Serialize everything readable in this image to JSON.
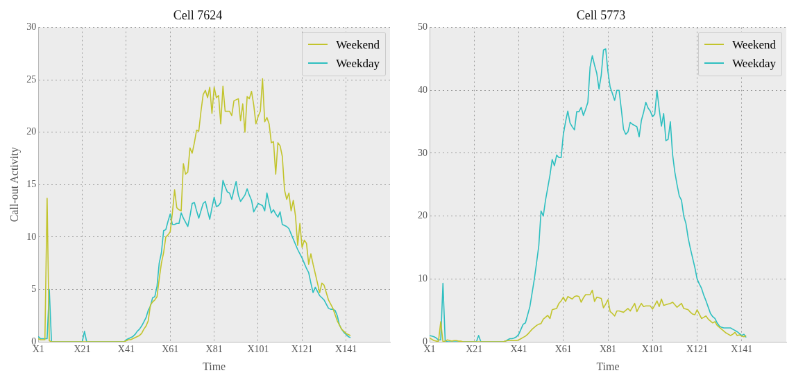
{
  "chart_data": [
    {
      "type": "line",
      "title": "Cell 7624",
      "xlabel": "Time",
      "ylabel": "Call-out Activity",
      "categories": [
        "X1",
        null,
        null,
        null,
        null,
        null,
        null,
        null,
        null,
        null,
        null,
        null,
        null,
        null,
        null,
        null,
        null,
        null,
        null,
        null,
        "X21",
        null,
        null,
        null,
        null,
        null,
        null,
        null,
        null,
        null,
        null,
        null,
        null,
        null,
        null,
        null,
        null,
        null,
        null,
        null,
        "X41",
        null,
        null,
        null,
        null,
        null,
        null,
        null,
        null,
        null,
        null,
        null,
        null,
        null,
        null,
        null,
        null,
        null,
        null,
        null,
        "X61",
        null,
        null,
        null,
        null,
        null,
        null,
        null,
        null,
        null,
        null,
        null,
        null,
        null,
        null,
        null,
        null,
        null,
        null,
        null,
        "X81",
        null,
        null,
        null,
        null,
        null,
        null,
        null,
        null,
        null,
        null,
        null,
        null,
        null,
        null,
        null,
        null,
        null,
        null,
        null,
        "X101",
        null,
        null,
        null,
        null,
        null,
        null,
        null,
        null,
        null,
        null,
        null,
        null,
        null,
        null,
        null,
        null,
        null,
        null,
        null,
        "X121",
        null,
        null,
        null,
        null,
        null,
        null,
        null,
        null,
        null,
        null,
        null,
        null,
        null,
        null,
        null,
        null,
        null,
        null,
        null,
        "X141",
        null,
        null,
        null,
        null,
        null,
        null,
        null,
        null,
        null,
        null,
        null,
        null,
        null,
        null,
        null,
        null,
        null,
        null,
        null,
        null
      ],
      "ylim": [
        0,
        30
      ],
      "yticks": [
        0,
        5,
        10,
        15,
        20,
        25,
        30
      ],
      "grid": true,
      "legend": "top right",
      "series": [
        {
          "name": "Weekend",
          "color": "#c2c42c",
          "values": [
            0.3,
            0.2,
            0.2,
            0.2,
            13.7,
            0.1,
            0,
            0,
            0,
            0,
            0,
            0,
            0,
            0,
            0,
            0,
            0,
            0,
            0,
            0,
            0,
            0,
            0,
            0,
            0,
            0,
            0,
            0,
            0,
            0,
            0,
            0,
            0,
            0,
            0,
            0,
            0,
            0,
            0,
            0,
            0.1,
            0.2,
            0.2,
            0.3,
            0.4,
            0.5,
            0.6,
            0.8,
            1.2,
            1.5,
            2,
            3.5,
            3.8,
            4,
            4.3,
            6,
            7.5,
            8.5,
            10,
            10.2,
            10.5,
            12.3,
            14.5,
            12.8,
            12.6,
            12.5,
            17,
            16,
            16.2,
            18.5,
            18,
            19,
            20.2,
            20.1,
            22,
            23.6,
            24,
            23.3,
            24.3,
            21.8,
            24.3,
            23.3,
            23.5,
            20.8,
            24.4,
            22,
            22,
            22,
            21.6,
            23,
            23.1,
            23.2,
            21.1,
            22.7,
            20,
            23.4,
            23.2,
            23.9,
            22.6,
            20.8,
            21.5,
            22,
            25.1,
            21,
            21.4,
            20.8,
            19,
            19.1,
            16,
            19,
            18.7,
            17.7,
            14.5,
            13.6,
            14.2,
            12.5,
            13.5,
            12,
            9.2,
            11.3,
            9,
            9.7,
            9.4,
            7.4,
            8.4,
            7.4,
            6.5,
            5.6,
            4.7,
            5.6,
            5.4,
            4.7,
            4,
            3.6,
            3.2,
            2.6,
            2,
            1.6,
            1.2,
            1,
            0.8,
            0.7,
            0.6,
            null,
            null,
            null,
            null,
            null,
            null,
            null,
            null,
            null,
            null,
            null,
            null,
            null,
            null,
            null,
            null,
            null,
            null
          ]
        },
        {
          "name": "Weekday",
          "color": "#2dbfc0",
          "values": [
            0.5,
            0.3,
            0.3,
            0.3,
            0.3,
            5,
            0,
            0,
            0,
            0,
            0,
            0,
            0,
            0,
            0,
            0,
            0,
            0,
            0,
            0,
            0,
            1,
            0,
            0,
            0,
            0,
            0,
            0,
            0,
            0,
            0,
            0,
            0,
            0,
            0,
            0,
            0,
            0,
            0,
            0,
            0.2,
            0.3,
            0.4,
            0.5,
            0.7,
            1,
            1.2,
            1.5,
            1.9,
            2.3,
            3,
            3.4,
            4.2,
            4.3,
            5.3,
            7.5,
            8.5,
            10.6,
            10.7,
            11.5,
            12.2,
            11.2,
            11.2,
            11.3,
            11.3,
            12.3,
            11.8,
            11.4,
            11,
            12,
            13.2,
            13.3,
            12.5,
            11.8,
            12.5,
            13.2,
            13.4,
            12.5,
            11.7,
            12.8,
            13.8,
            12.9,
            13,
            13.3,
            15.4,
            14.8,
            14.3,
            14.2,
            13.6,
            14.5,
            15.3,
            14,
            13.4,
            13.7,
            14,
            14.6,
            14,
            13.5,
            12.4,
            12.8,
            13.2,
            13.1,
            13,
            12.5,
            14.2,
            13.2,
            12.3,
            12.6,
            12.2,
            11.9,
            12.4,
            11.2,
            11.1,
            11,
            10.8,
            10.3,
            9.8,
            9.3,
            8.8,
            8.4,
            8,
            7.5,
            7,
            6.6,
            5.6,
            4.7,
            5.2,
            4.8,
            4.4,
            4.2,
            4,
            3.6,
            3.2,
            3.1,
            3.1,
            3,
            2.5,
            1.6,
            1.2,
            0.9,
            0.7,
            0.5,
            0.4,
            null,
            null,
            null,
            null,
            null,
            null,
            null,
            null,
            null,
            null,
            null,
            null,
            null,
            null,
            null,
            null,
            null,
            null
          ]
        }
      ]
    },
    {
      "type": "line",
      "title": "Cell 5773",
      "xlabel": "Time",
      "categories": [
        "X1",
        null,
        null,
        null,
        null,
        null,
        null,
        null,
        null,
        null,
        null,
        null,
        null,
        null,
        null,
        null,
        null,
        null,
        null,
        null,
        "X21",
        null,
        null,
        null,
        null,
        null,
        null,
        null,
        null,
        null,
        null,
        null,
        null,
        null,
        null,
        null,
        null,
        null,
        null,
        null,
        "X41",
        null,
        null,
        null,
        null,
        null,
        null,
        null,
        null,
        null,
        null,
        null,
        null,
        null,
        null,
        null,
        null,
        null,
        null,
        null,
        "X61",
        null,
        null,
        null,
        null,
        null,
        null,
        null,
        null,
        null,
        null,
        null,
        null,
        null,
        null,
        null,
        null,
        null,
        null,
        null,
        "X81",
        null,
        null,
        null,
        null,
        null,
        null,
        null,
        null,
        null,
        null,
        null,
        null,
        null,
        null,
        null,
        null,
        null,
        null,
        null,
        "X101",
        null,
        null,
        null,
        null,
        null,
        null,
        null,
        null,
        null,
        null,
        null,
        null,
        null,
        null,
        null,
        null,
        null,
        null,
        null,
        "X121",
        null,
        null,
        null,
        null,
        null,
        null,
        null,
        null,
        null,
        null,
        null,
        null,
        null,
        null,
        null,
        null,
        null,
        null,
        null,
        "X141",
        null,
        null,
        null,
        null,
        null,
        null,
        null,
        null,
        null,
        null,
        null,
        null,
        null,
        null,
        null,
        null,
        null,
        null,
        null,
        null
      ],
      "ylim": [
        0,
        50
      ],
      "yticks": [
        0,
        10,
        20,
        30,
        40,
        50
      ],
      "grid": true,
      "legend": "top right",
      "series": [
        {
          "name": "Weekend",
          "color": "#c2c42c",
          "values": [
            0.6,
            0.4,
            0.2,
            0.1,
            0.1,
            3.2,
            0,
            0.1,
            0.3,
            0.2,
            0.1,
            0.2,
            0.2,
            0.1,
            0.1,
            0,
            0,
            0,
            0,
            0,
            0,
            0,
            0,
            0,
            0,
            0,
            0,
            0,
            0,
            0,
            0,
            0,
            0,
            0,
            0.1,
            0.2,
            0.2,
            0.2,
            0.2,
            0.2,
            0.3,
            0.5,
            0.7,
            0.9,
            1.2,
            1.6,
            2,
            2.3,
            2.6,
            2.8,
            2.9,
            3.6,
            3.9,
            4.2,
            3.7,
            5.1,
            5.2,
            5.3,
            6.1,
            6.5,
            7.1,
            6.4,
            7.2,
            7,
            6.8,
            7.2,
            7.3,
            7.2,
            6.3,
            7,
            7.5,
            7.5,
            7.5,
            8.2,
            6.4,
            7.1,
            7,
            6.9,
            5.4,
            6,
            6.7,
            4.8,
            4.5,
            4.1,
            4.9,
            4.9,
            4.8,
            4.7,
            5,
            5.3,
            4.9,
            5.5,
            6.1,
            4.8,
            5.5,
            6.1,
            5.6,
            5.7,
            5.7,
            5.7,
            5.2,
            5.8,
            6.5,
            5.6,
            6.8,
            5.8,
            5.9,
            6,
            6.1,
            6.3,
            5.9,
            5.5,
            5.8,
            6.1,
            5.3,
            5.2,
            5.1,
            4.7,
            4.4,
            4.3,
            5.1,
            4.4,
            3.7,
            3.9,
            4.1,
            3.6,
            3.3,
            3,
            3.2,
            2.6,
            2.3,
            2,
            1.7,
            1.4,
            1.2,
            1,
            1.2,
            1.5,
            1,
            1.1,
            0.9,
            0.8,
            1,
            null,
            null,
            null,
            null,
            null,
            null,
            null,
            null,
            null,
            null,
            null,
            null,
            null,
            null,
            null,
            null,
            null,
            null
          ]
        },
        {
          "name": "Weekday",
          "color": "#2dbfc0",
          "values": [
            1,
            0.9,
            0.8,
            0.6,
            0.3,
            0.3,
            9.3,
            0.2,
            0,
            0,
            0,
            0,
            0,
            0,
            0,
            0,
            0,
            0,
            0,
            0,
            0,
            0,
            1,
            0,
            0,
            0,
            0,
            0,
            0,
            0,
            0,
            0,
            0,
            0,
            0.1,
            0.3,
            0.5,
            0.5,
            0.6,
            0.8,
            1.2,
            2,
            2.8,
            3,
            4.3,
            5.6,
            7.8,
            10,
            12.6,
            15.3,
            20.8,
            20,
            22.5,
            24.5,
            26.5,
            29,
            28,
            29.7,
            29.3,
            29.3,
            33,
            35,
            36.7,
            34.8,
            34.2,
            33.7,
            36.6,
            36.6,
            37.3,
            36,
            37,
            38.1,
            43.7,
            45.5,
            44,
            42.7,
            40.2,
            42.4,
            46.4,
            46.6,
            43,
            40.5,
            39.5,
            38.4,
            40,
            40,
            37,
            33.8,
            33,
            33.4,
            34.9,
            34.6,
            34.4,
            34.2,
            32.6,
            35.2,
            36.5,
            38.1,
            37.2,
            36.7,
            35.8,
            36.2,
            40,
            37,
            34.3,
            36.3,
            32,
            32.2,
            35,
            29.8,
            27,
            25,
            23.2,
            22.5,
            20,
            18.8,
            16.5,
            14.8,
            13.3,
            11.8,
            10,
            9.2,
            8.5,
            7.4,
            6.5,
            5.5,
            4.5,
            4,
            3.7,
            3,
            2.5,
            2.3,
            2.2,
            2.2,
            2.2,
            2.2,
            2,
            1.8,
            1.6,
            1.3,
            1,
            1.2,
            0.7,
            null,
            null,
            null,
            null,
            null,
            null,
            null,
            null,
            null,
            null,
            null,
            null,
            null,
            null,
            null,
            null,
            null,
            null
          ]
        }
      ]
    }
  ]
}
